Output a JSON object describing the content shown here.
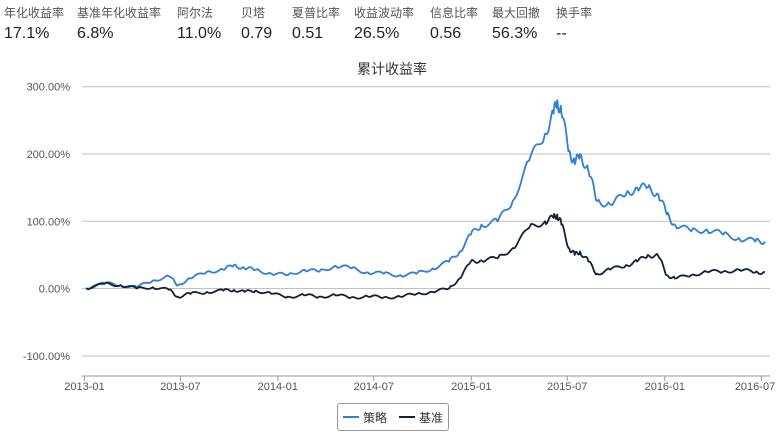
{
  "metrics": [
    {
      "label": "年化收益率",
      "value": "17.1%"
    },
    {
      "label": "基准年化收益率",
      "value": "6.8%"
    },
    {
      "label": "阿尔法",
      "value": "11.0%"
    },
    {
      "label": "贝塔",
      "value": "0.79"
    },
    {
      "label": "夏普比率",
      "value": "0.51"
    },
    {
      "label": "收益波动率",
      "value": "26.5%"
    },
    {
      "label": "信息比率",
      "value": "0.56"
    },
    {
      "label": "最大回撤",
      "value": "56.3%"
    },
    {
      "label": "换手率",
      "value": "--"
    }
  ],
  "colors": {
    "strategy": "#2f7ed8",
    "benchmark": "#0d233a",
    "grid": "#c0c0c0",
    "axis": "#999999"
  },
  "chart_data": {
    "type": "line",
    "title": "累计收益率",
    "ylim": [
      -130,
      310
    ],
    "yticks": [
      -100,
      0,
      100,
      200,
      300
    ],
    "ytick_labels": [
      "-100.00%",
      "0.00%",
      "100.00%",
      "200.00%",
      "300.00%"
    ],
    "xlim": [
      "2013-01-04",
      "2016-07-10"
    ],
    "xticks": [
      "2013-01-01",
      "2013-07-01",
      "2014-01-01",
      "2014-07-01",
      "2015-01-01",
      "2015-07-01",
      "2016-01-01",
      "2016-07-01"
    ],
    "xtick_labels": [
      "2013-01",
      "2013-07",
      "2014-01",
      "2014-07",
      "2015-01",
      "2015-07",
      "2016-01",
      "2016-07"
    ],
    "grid": true,
    "legend_position": "bottom-center",
    "series": [
      {
        "name": "策略",
        "color_key": "strategy",
        "x": [
          "2013-01-04",
          "2013-02-08",
          "2013-03-10",
          "2013-04-10",
          "2013-05-10",
          "2013-06-10",
          "2013-06-26",
          "2013-07-20",
          "2013-08-20",
          "2013-09-20",
          "2013-10-10",
          "2013-10-30",
          "2013-11-20",
          "2013-12-20",
          "2014-01-20",
          "2014-02-20",
          "2014-03-20",
          "2014-04-20",
          "2014-05-20",
          "2014-06-20",
          "2014-07-20",
          "2014-08-20",
          "2014-09-20",
          "2014-10-20",
          "2014-11-20",
          "2014-12-10",
          "2014-12-31",
          "2015-01-20",
          "2015-02-20",
          "2015-03-20",
          "2015-04-20",
          "2015-05-20",
          "2015-06-05",
          "2015-06-12",
          "2015-06-20",
          "2015-07-05",
          "2015-07-15",
          "2015-07-25",
          "2015-08-10",
          "2015-08-26",
          "2015-09-20",
          "2015-10-20",
          "2015-11-10",
          "2015-11-30",
          "2015-12-20",
          "2016-01-05",
          "2016-01-20",
          "2016-02-20",
          "2016-03-20",
          "2016-04-20",
          "2016-05-20",
          "2016-06-20",
          "2016-07-08"
        ],
        "y": [
          0,
          8,
          5,
          2,
          12,
          18,
          5,
          15,
          25,
          28,
          35,
          30,
          28,
          22,
          20,
          28,
          25,
          34,
          30,
          24,
          22,
          20,
          22,
          30,
          40,
          55,
          80,
          95,
          100,
          130,
          190,
          230,
          260,
          280,
          260,
          205,
          185,
          200,
          175,
          130,
          125,
          140,
          150,
          150,
          140,
          110,
          95,
          85,
          88,
          80,
          75,
          70,
          70
        ]
      },
      {
        "name": "基准",
        "color_key": "benchmark",
        "x": [
          "2013-01-04",
          "2013-02-08",
          "2013-03-10",
          "2013-04-10",
          "2013-05-10",
          "2013-06-10",
          "2013-06-26",
          "2013-07-20",
          "2013-08-20",
          "2013-09-20",
          "2013-10-10",
          "2013-10-30",
          "2013-11-20",
          "2013-12-20",
          "2014-01-20",
          "2014-02-20",
          "2014-03-20",
          "2014-04-20",
          "2014-05-20",
          "2014-06-20",
          "2014-07-20",
          "2014-08-20",
          "2014-09-20",
          "2014-10-20",
          "2014-11-20",
          "2014-12-10",
          "2014-12-31",
          "2015-01-20",
          "2015-02-20",
          "2015-03-20",
          "2015-04-20",
          "2015-05-20",
          "2015-06-05",
          "2015-06-12",
          "2015-06-20",
          "2015-07-05",
          "2015-07-15",
          "2015-07-25",
          "2015-08-10",
          "2015-08-26",
          "2015-09-20",
          "2015-10-20",
          "2015-11-10",
          "2015-11-30",
          "2015-12-20",
          "2016-01-05",
          "2016-01-20",
          "2016-02-20",
          "2016-03-20",
          "2016-04-20",
          "2016-05-20",
          "2016-06-20",
          "2016-07-08"
        ],
        "y": [
          0,
          7,
          5,
          0,
          2,
          -2,
          -12,
          -8,
          -5,
          -3,
          -2,
          -5,
          -3,
          -8,
          -12,
          -10,
          -12,
          -10,
          -13,
          -12,
          -13,
          -12,
          -8,
          -5,
          0,
          15,
          40,
          42,
          45,
          60,
          90,
          100,
          105,
          110,
          95,
          60,
          50,
          55,
          40,
          22,
          28,
          35,
          40,
          50,
          48,
          20,
          15,
          20,
          25,
          25,
          28,
          24,
          24
        ]
      }
    ]
  }
}
